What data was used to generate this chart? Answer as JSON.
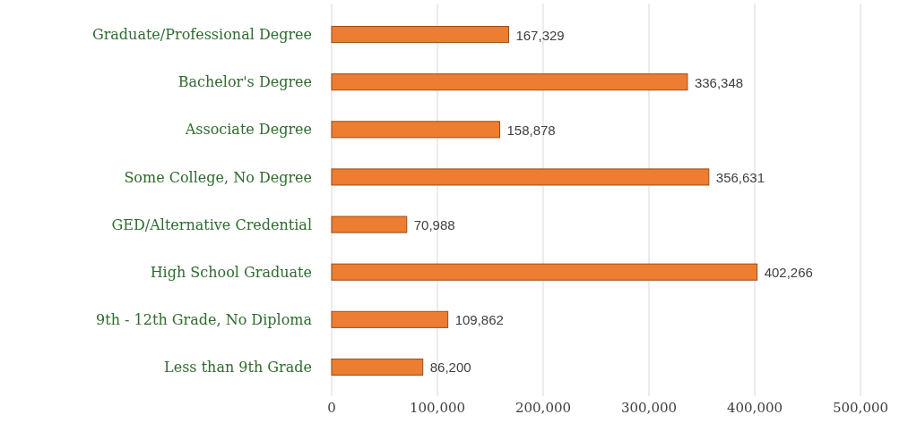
{
  "chart_data": {
    "type": "bar",
    "orientation": "horizontal",
    "categories": [
      "Graduate/Professional Degree",
      "Bachelor's Degree",
      "Associate Degree",
      "Some College, No Degree",
      "GED/Alternative Credential",
      "High School Graduate",
      "9th - 12th Grade, No Diploma",
      "Less than 9th Grade"
    ],
    "values": [
      167329,
      336348,
      158878,
      356631,
      70988,
      402266,
      109862,
      86200
    ],
    "color": "#ed7d31",
    "xlim": [
      0,
      500000
    ],
    "xticks": [
      {
        "value": 0,
        "label": "0"
      },
      {
        "value": 100000,
        "label": "100,000"
      },
      {
        "value": 200000,
        "label": "200,000"
      },
      {
        "value": 300000,
        "label": "300,000"
      },
      {
        "value": 400000,
        "label": "400,000"
      },
      {
        "value": 500000,
        "label": "500,000"
      }
    ],
    "value_labels": [
      "167,329",
      "336,348",
      "158,878",
      "356,631",
      "70,988",
      "402,266",
      "109,862",
      "86,200"
    ],
    "grid": "x"
  }
}
